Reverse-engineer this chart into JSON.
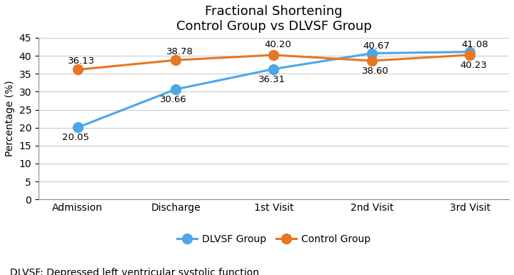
{
  "title_line1": "Fractional Shortening",
  "title_line2": "Control Group vs DLVSF Group",
  "x_labels": [
    "Admission",
    "Discharge",
    "1st Visit",
    "2nd Visit",
    "3rd Visit"
  ],
  "dlvsf_values": [
    20.05,
    30.66,
    36.31,
    40.67,
    41.08
  ],
  "control_values": [
    36.13,
    38.78,
    40.2,
    38.6,
    40.23
  ],
  "dlvsf_color": "#4da6e8",
  "control_color": "#e87722",
  "ylabel": "Percentage (%)",
  "ylim": [
    0,
    45
  ],
  "yticks": [
    0,
    5,
    10,
    15,
    20,
    25,
    30,
    35,
    40,
    45
  ],
  "dlvsf_label": "DLVSF Group",
  "control_label": "Control Group",
  "footnote": "DLVSF: Depressed left ventricular systolic function",
  "title_fontsize": 13,
  "label_fontsize": 10,
  "tick_fontsize": 10,
  "annotation_fontsize": 9.5,
  "legend_fontsize": 10,
  "footnote_fontsize": 10,
  "background_color": "#ffffff",
  "grid_color": "#cccccc",
  "line_width": 2.2,
  "marker_size": 10,
  "dlvsf_annotations": [
    "20.05",
    "30.66",
    "36.31",
    "40.67",
    "41.08"
  ],
  "control_annotations": [
    "36.13",
    "38.78",
    "40.20",
    "38.60",
    "40.23"
  ]
}
